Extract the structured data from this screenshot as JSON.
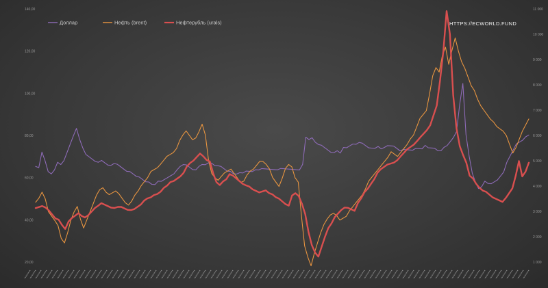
{
  "watermark": "HTTPS://ECWORLD.FUND",
  "chart_data": {
    "type": "line",
    "grid": false,
    "legend_position": "top-left",
    "y_left": {
      "ticks": [
        "20,00",
        "40,00",
        "60,00",
        "80,00",
        "100,00",
        "120,00",
        "140,00"
      ],
      "range": [
        20,
        140
      ]
    },
    "y_right": {
      "ticks": [
        "1 000",
        "2 000",
        "3 000",
        "4 000",
        "5 000",
        "6 000",
        "7 000",
        "8 000",
        "9 000",
        "10 000",
        "11 000"
      ],
      "range": [
        1000,
        11000
      ]
    },
    "x_tick_count": 92,
    "series": [
      {
        "name": "Доллар",
        "axis": "left",
        "color": "#8e6bb8",
        "values": [
          65,
          64.5,
          72,
          68,
          63,
          62,
          64,
          67,
          66,
          68,
          72,
          76,
          80,
          83,
          78,
          74,
          71,
          70,
          69,
          68,
          67,
          68,
          67,
          66,
          66,
          67,
          66,
          65,
          64,
          63,
          63,
          62,
          61,
          60,
          59,
          58,
          58,
          57,
          57,
          58,
          58,
          59,
          60,
          61,
          62,
          64,
          65,
          66,
          66,
          65,
          64,
          64,
          65,
          66,
          66,
          67,
          67,
          66,
          66,
          65,
          64,
          63,
          63,
          62,
          62,
          62,
          62,
          63,
          63,
          63,
          64,
          64,
          64,
          64,
          64,
          64,
          64,
          64,
          64,
          64,
          64,
          64,
          64,
          64,
          64,
          66,
          79,
          78,
          79,
          77,
          76,
          75,
          74,
          73,
          72,
          72,
          73,
          72,
          74,
          74,
          75,
          76,
          76,
          77,
          76,
          75,
          74,
          74,
          74,
          75,
          74,
          74,
          75,
          75,
          75,
          74,
          73,
          73,
          73,
          73,
          73,
          74,
          74,
          74,
          75,
          74,
          74,
          74,
          73,
          73,
          74,
          75,
          77,
          79,
          82,
          95,
          105,
          80,
          70,
          62,
          58,
          55,
          56,
          58,
          57,
          57,
          58,
          59,
          61,
          63,
          67,
          70,
          73,
          76,
          77,
          78,
          79,
          80
        ]
      },
      {
        "name": "Нефть (brent)",
        "axis": "left",
        "color": "#e89540",
        "values": [
          48,
          50,
          53,
          50,
          44,
          42,
          40,
          37,
          31,
          29,
          34,
          40,
          44,
          46,
          40,
          36,
          40,
          44,
          48,
          52,
          54,
          55,
          53,
          52,
          53,
          54,
          52,
          50,
          48,
          47,
          49,
          52,
          54,
          56,
          58,
          60,
          63,
          64,
          65,
          66,
          68,
          70,
          71,
          72,
          74,
          78,
          80,
          82,
          80,
          78,
          79,
          82,
          85,
          80,
          68,
          62,
          60,
          59,
          61,
          62,
          63,
          64,
          62,
          60,
          58,
          58,
          61,
          63,
          64,
          66,
          68,
          68,
          66,
          64,
          60,
          58,
          56,
          60,
          64,
          66,
          65,
          60,
          58,
          42,
          28,
          22,
          18,
          24,
          29,
          34,
          38,
          40,
          42,
          43,
          42,
          40,
          41,
          42,
          44,
          46,
          48,
          50,
          52,
          55,
          58,
          60,
          62,
          64,
          66,
          68,
          70,
          72,
          71,
          70,
          72,
          74,
          76,
          78,
          80,
          84,
          88,
          90,
          92,
          100,
          108,
          112,
          110,
          118,
          122,
          114,
          120,
          126,
          120,
          115,
          112,
          108,
          104,
          101,
          97,
          94,
          92,
          90,
          88,
          86,
          84,
          83,
          82,
          80,
          76,
          72,
          74,
          78,
          82,
          85,
          88
        ]
      },
      {
        "name": "Нефтерубль (urals)",
        "axis": "right",
        "color": "#d94f4f",
        "values": [
          3100,
          3150,
          3200,
          3150,
          3050,
          2900,
          2750,
          2650,
          2450,
          2300,
          2600,
          2750,
          2850,
          2900,
          2800,
          2750,
          2850,
          3000,
          3150,
          3250,
          3300,
          3250,
          3200,
          3150,
          3150,
          3200,
          3150,
          3100,
          3050,
          3050,
          3100,
          3200,
          3300,
          3400,
          3500,
          3550,
          3650,
          3700,
          3800,
          3900,
          4000,
          4150,
          4200,
          4300,
          4400,
          4550,
          4750,
          4900,
          5000,
          5150,
          5300,
          5200,
          5000,
          4950,
          4500,
          4150,
          4050,
          4200,
          4300,
          4450,
          4400,
          4300,
          4200,
          4100,
          4050,
          3950,
          3850,
          3800,
          3750,
          3800,
          3850,
          3750,
          3650,
          3550,
          3500,
          3400,
          3300,
          3250,
          3600,
          3700,
          3600,
          3300,
          2900,
          2200,
          1700,
          1350,
          1200,
          1600,
          2000,
          2350,
          2550,
          2750,
          2900,
          3050,
          3150,
          3150,
          3100,
          3050,
          3300,
          3500,
          3750,
          3900,
          4100,
          4300,
          4500,
          4650,
          4750,
          4850,
          4900,
          4950,
          5050,
          5150,
          5300,
          5450,
          5550,
          5650,
          5800,
          5900,
          6050,
          6200,
          6400,
          6800,
          7200,
          8200,
          9300,
          10900,
          10000,
          7600,
          6300,
          5600,
          5200,
          4900,
          4400,
          4300,
          4100,
          3950,
          3850,
          3750,
          3650,
          3550,
          3500,
          3450,
          3400,
          3500,
          3700,
          3900,
          4400,
          5000,
          4400,
          4600,
          4900
        ]
      }
    ]
  }
}
